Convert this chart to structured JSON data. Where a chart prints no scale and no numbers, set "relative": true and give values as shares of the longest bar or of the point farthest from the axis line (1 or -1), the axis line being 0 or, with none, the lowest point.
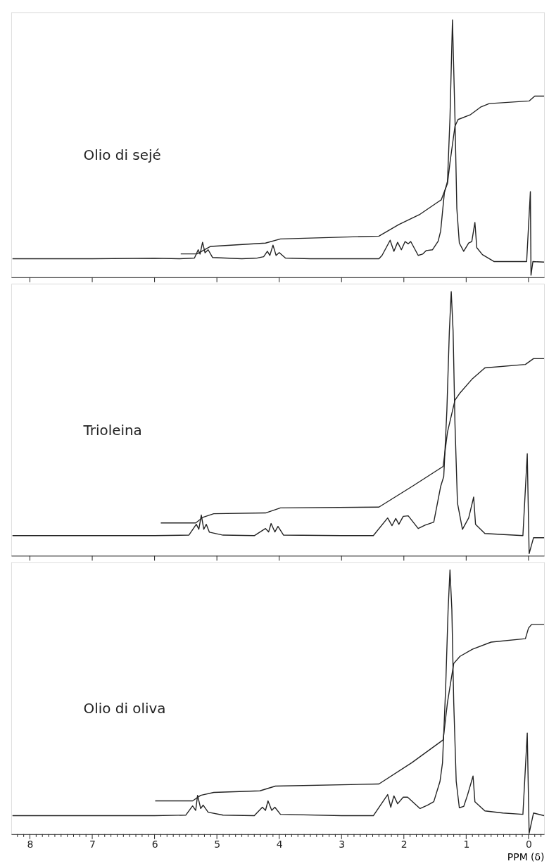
{
  "chart_data": [
    {
      "type": "line",
      "relative": true,
      "xlim": [
        8.3,
        -0.25
      ],
      "xticks": [
        {
          "value": 0,
          "label": null
        },
        {
          "value": 1,
          "label": null
        },
        {
          "value": 2,
          "label": null
        },
        {
          "value": 3,
          "label": null
        },
        {
          "value": 4,
          "label": null
        },
        {
          "value": 5,
          "label": null
        },
        {
          "value": 6,
          "label": null
        },
        {
          "value": 7,
          "label": null
        },
        {
          "value": 8,
          "label": null
        }
      ],
      "tick_labels": false,
      "annotations": [
        "Olio di sejé"
      ],
      "series": [
        {
          "color": "#222222",
          "x": [
            8.28,
            7.0,
            6.0,
            5.6,
            5.36,
            5.3,
            5.27,
            5.23,
            5.19,
            5.14,
            5.07,
            4.6,
            4.35,
            4.25,
            4.19,
            4.15,
            4.1,
            4.05,
            4.0,
            3.9,
            3.5,
            3.0,
            2.4,
            2.35,
            2.22,
            2.16,
            2.1,
            2.04,
            1.98,
            1.93,
            1.89,
            1.77,
            1.7,
            1.64,
            1.54,
            1.45,
            1.41,
            1.35,
            1.3,
            1.26,
            1.22,
            1.18,
            1.15,
            1.11,
            1.04,
            0.96,
            0.91,
            0.86,
            0.83,
            0.74,
            0.55,
            0.2,
            0.03,
            -0.03,
            -0.04,
            -0.07,
            -0.25
          ],
          "values": [
            0.072,
            0.072,
            0.074,
            0.072,
            0.075,
            0.107,
            0.09,
            0.136,
            0.095,
            0.107,
            0.077,
            0.072,
            0.075,
            0.08,
            0.101,
            0.085,
            0.125,
            0.085,
            0.096,
            0.075,
            0.072,
            0.072,
            0.072,
            0.085,
            0.144,
            0.101,
            0.136,
            0.107,
            0.139,
            0.13,
            0.139,
            0.085,
            0.09,
            0.104,
            0.107,
            0.14,
            0.179,
            0.328,
            0.373,
            0.62,
            1.0,
            0.62,
            0.267,
            0.133,
            0.101,
            0.133,
            0.139,
            0.213,
            0.115,
            0.088,
            0.061,
            0.061,
            0.061,
            0.333,
            0.008,
            0.061,
            0.059
          ]
        },
        {
          "color": "#222222",
          "x": [
            5.58,
            5.32,
            5.1,
            4.22,
            3.98,
            2.4,
            2.08,
            1.74,
            1.45,
            1.4,
            1.3,
            1.26,
            1.18,
            1.13,
            0.93,
            0.77,
            0.63,
            -0.01,
            -0.1,
            -0.25
          ],
          "values": [
            0.091,
            0.091,
            0.12,
            0.133,
            0.149,
            0.16,
            0.205,
            0.245,
            0.293,
            0.301,
            0.365,
            0.445,
            0.587,
            0.613,
            0.632,
            0.661,
            0.675,
            0.685,
            0.704,
            0.704
          ]
        }
      ]
    },
    {
      "type": "line",
      "relative": true,
      "xlim": [
        8.3,
        -0.25
      ],
      "xticks": [
        {
          "value": 0,
          "label": null
        },
        {
          "value": 1,
          "label": null
        },
        {
          "value": 2,
          "label": null
        },
        {
          "value": 3,
          "label": null
        },
        {
          "value": 4,
          "label": null
        },
        {
          "value": 5,
          "label": null
        },
        {
          "value": 6,
          "label": null
        },
        {
          "value": 7,
          "label": null
        },
        {
          "value": 8,
          "label": null
        }
      ],
      "tick_labels": false,
      "annotations": [
        "Trioleina"
      ],
      "series": [
        {
          "color": "#222222",
          "x": [
            8.28,
            7.0,
            6.0,
            5.45,
            5.33,
            5.29,
            5.25,
            5.21,
            5.17,
            5.12,
            4.9,
            4.4,
            4.22,
            4.17,
            4.13,
            4.07,
            4.02,
            3.93,
            3.0,
            2.49,
            2.26,
            2.19,
            2.13,
            2.08,
            2.01,
            1.93,
            1.77,
            1.66,
            1.52,
            1.41,
            1.36,
            1.31,
            1.27,
            1.24,
            1.21,
            1.18,
            1.14,
            1.06,
            0.96,
            0.88,
            0.85,
            0.7,
            0.09,
            0.02,
            -0.01,
            -0.08,
            -0.25
          ],
          "values": [
            0.076,
            0.076,
            0.076,
            0.078,
            0.119,
            0.1,
            0.154,
            0.1,
            0.119,
            0.089,
            0.078,
            0.076,
            0.103,
            0.09,
            0.122,
            0.09,
            0.111,
            0.078,
            0.076,
            0.076,
            0.143,
            0.114,
            0.141,
            0.119,
            0.149,
            0.151,
            0.103,
            0.116,
            0.127,
            0.262,
            0.3,
            0.55,
            0.85,
            1.0,
            0.85,
            0.5,
            0.2,
            0.1,
            0.143,
            0.222,
            0.119,
            0.084,
            0.076,
            0.386,
            0.008,
            0.068,
            0.068
          ]
        },
        {
          "color": "#222222",
          "x": [
            5.9,
            5.34,
            5.22,
            5.05,
            4.22,
            3.98,
            2.4,
            1.87,
            1.37,
            1.3,
            1.18,
            1.1,
            0.9,
            0.7,
            0.05,
            -0.08,
            -0.25
          ],
          "values": [
            0.124,
            0.124,
            0.146,
            0.159,
            0.162,
            0.181,
            0.184,
            0.262,
            0.338,
            0.468,
            0.589,
            0.616,
            0.67,
            0.711,
            0.724,
            0.746,
            0.746
          ]
        }
      ]
    },
    {
      "type": "line",
      "relative": true,
      "xlim": [
        8.3,
        -0.25
      ],
      "xlabel": "PPM (δ)",
      "tick_labels": "x",
      "annotations": [
        "Olio di oliva"
      ],
      "xticks": [
        {
          "value": -0.2,
          "label": null
        },
        {
          "value": -0.1,
          "label": null
        },
        0,
        {
          "value": 0.1,
          "label": null
        },
        {
          "value": 0.2,
          "label": null
        },
        {
          "value": 0.3,
          "label": null
        },
        {
          "value": 0.4,
          "label": null
        },
        {
          "value": 0.5,
          "label": null
        },
        {
          "value": 0.6,
          "label": null
        },
        {
          "value": 0.7,
          "label": null
        },
        {
          "value": 0.8,
          "label": null
        },
        {
          "value": 0.9,
          "label": null
        },
        1,
        {
          "value": 1.1,
          "label": null
        },
        {
          "value": 1.2,
          "label": null
        },
        {
          "value": 1.3,
          "label": null
        },
        {
          "value": 1.4,
          "label": null
        },
        {
          "value": 1.5,
          "label": null
        },
        {
          "value": 1.6,
          "label": null
        },
        {
          "value": 1.7,
          "label": null
        },
        {
          "value": 1.8,
          "label": null
        },
        {
          "value": 1.9,
          "label": null
        },
        2,
        {
          "value": 2.1,
          "label": null
        },
        {
          "value": 2.2,
          "label": null
        },
        {
          "value": 2.3,
          "label": null
        },
        {
          "value": 2.4,
          "label": null
        },
        {
          "value": 2.5,
          "label": null
        },
        {
          "value": 2.6,
          "label": null
        },
        {
          "value": 2.7,
          "label": null
        },
        {
          "value": 2.8,
          "label": null
        },
        {
          "value": 2.9,
          "label": null
        },
        3,
        {
          "value": 3.1,
          "label": null
        },
        {
          "value": 3.2,
          "label": null
        },
        {
          "value": 3.3,
          "label": null
        },
        {
          "value": 3.4,
          "label": null
        },
        {
          "value": 3.5,
          "label": null
        },
        {
          "value": 3.6,
          "label": null
        },
        {
          "value": 3.7,
          "label": null
        },
        {
          "value": 3.8,
          "label": null
        },
        {
          "value": 3.9,
          "label": null
        },
        4,
        {
          "value": 4.1,
          "label": null
        },
        {
          "value": 4.2,
          "label": null
        },
        {
          "value": 4.3,
          "label": null
        },
        {
          "value": 4.4,
          "label": null
        },
        {
          "value": 4.5,
          "label": null
        },
        {
          "value": 4.6,
          "label": null
        },
        {
          "value": 4.7,
          "label": null
        },
        {
          "value": 4.8,
          "label": null
        },
        {
          "value": 4.9,
          "label": null
        },
        5,
        {
          "value": 5.1,
          "label": null
        },
        {
          "value": 5.2,
          "label": null
        },
        {
          "value": 5.3,
          "label": null
        },
        {
          "value": 5.4,
          "label": null
        },
        {
          "value": 5.5,
          "label": null
        },
        {
          "value": 5.6,
          "label": null
        },
        {
          "value": 5.7,
          "label": null
        },
        {
          "value": 5.8,
          "label": null
        },
        {
          "value": 5.9,
          "label": null
        },
        6,
        {
          "value": 6.1,
          "label": null
        },
        {
          "value": 6.2,
          "label": null
        },
        {
          "value": 6.3,
          "label": null
        },
        {
          "value": 6.4,
          "label": null
        },
        {
          "value": 6.5,
          "label": null
        },
        {
          "value": 6.6,
          "label": null
        },
        {
          "value": 6.7,
          "label": null
        },
        {
          "value": 6.8,
          "label": null
        },
        {
          "value": 6.9,
          "label": null
        },
        7,
        {
          "value": 7.1,
          "label": null
        },
        {
          "value": 7.2,
          "label": null
        },
        {
          "value": 7.3,
          "label": null
        },
        {
          "value": 7.4,
          "label": null
        },
        {
          "value": 7.5,
          "label": null
        },
        {
          "value": 7.6,
          "label": null
        },
        {
          "value": 7.7,
          "label": null
        },
        {
          "value": 7.8,
          "label": null
        },
        {
          "value": 7.9,
          "label": null
        },
        8,
        {
          "value": 8.1,
          "label": null
        },
        {
          "value": 8.2,
          "label": null
        }
      ],
      "series": [
        {
          "color": "#222222",
          "x": [
            8.28,
            7.0,
            6.0,
            5.5,
            5.39,
            5.34,
            5.31,
            5.26,
            5.22,
            5.14,
            4.9,
            4.4,
            4.27,
            4.22,
            4.18,
            4.12,
            4.07,
            3.98,
            3.0,
            2.49,
            2.26,
            2.21,
            2.16,
            2.1,
            2.01,
            1.94,
            1.74,
            1.62,
            1.52,
            1.42,
            1.38,
            1.33,
            1.29,
            1.26,
            1.23,
            1.2,
            1.16,
            1.11,
            1.04,
            0.98,
            0.89,
            0.86,
            0.7,
            0.41,
            0.09,
            0.02,
            -0.01,
            -0.08,
            -0.25
          ],
          "values": [
            0.07,
            0.07,
            0.07,
            0.072,
            0.107,
            0.09,
            0.147,
            0.097,
            0.11,
            0.083,
            0.072,
            0.07,
            0.102,
            0.09,
            0.126,
            0.09,
            0.102,
            0.075,
            0.07,
            0.07,
            0.15,
            0.102,
            0.145,
            0.115,
            0.14,
            0.14,
            0.097,
            0.11,
            0.123,
            0.2,
            0.27,
            0.55,
            0.85,
            1.0,
            0.85,
            0.5,
            0.2,
            0.1,
            0.105,
            0.147,
            0.22,
            0.123,
            0.088,
            0.08,
            0.075,
            0.383,
            0.003,
            0.08,
            0.07
          ]
        },
        {
          "color": "#222222",
          "x": [
            5.99,
            5.39,
            5.26,
            5.05,
            4.31,
            4.06,
            2.4,
            1.87,
            1.37,
            1.3,
            1.2,
            1.1,
            0.9,
            0.6,
            0.05,
            0.0,
            -0.05,
            -0.25
          ],
          "values": [
            0.126,
            0.126,
            0.147,
            0.158,
            0.164,
            0.182,
            0.19,
            0.271,
            0.357,
            0.499,
            0.646,
            0.673,
            0.7,
            0.727,
            0.74,
            0.78,
            0.794,
            0.794
          ]
        }
      ]
    }
  ]
}
